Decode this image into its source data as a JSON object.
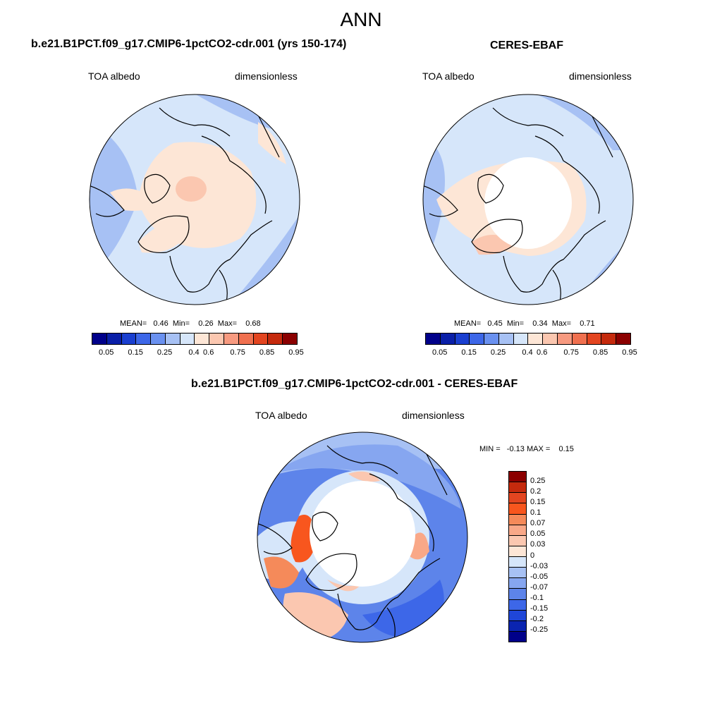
{
  "main_title": "ANN",
  "panels": [
    {
      "title": "b.e21.B1PCT.f09_g17.CMIP6-1pctCO2-cdr.001 (yrs 150-174)",
      "left_label": "TOA albedo",
      "right_label": "dimensionless",
      "stats": "MEAN=   0.46  Min=    0.26  Max=    0.68"
    },
    {
      "title": "CERES-EBAF",
      "left_label": "TOA albedo",
      "right_label": "dimensionless",
      "stats": "MEAN=   0.45  Min=    0.34  Max=    0.71"
    },
    {
      "title": "b.e21.B1PCT.f09_g17.CMIP6-1pctCO2-cdr.001 - CERES-EBAF",
      "left_label": "TOA albedo",
      "right_label": "dimensionless",
      "stats": "MIN =   -0.13 MAX =    0.15"
    }
  ],
  "colorbar_top": {
    "ticks": [
      "0.05",
      "0.15",
      "0.25",
      "0.4",
      "0.6",
      "0.75",
      "0.85",
      "0.95"
    ],
    "colors": [
      "#00008a",
      "#0a1fa8",
      "#1a3fd0",
      "#3d67e8",
      "#6a91f0",
      "#a7c1f4",
      "#d6e6fa",
      "#fde6d6",
      "#fbc7b0",
      "#f79a80",
      "#f0704f",
      "#e34520",
      "#c52a0d",
      "#8b0000"
    ]
  },
  "colorbar_diff": {
    "ticks": [
      "0.25",
      "0.2",
      "0.15",
      "0.1",
      "0.07",
      "0.05",
      "0.03",
      "0",
      "-0.03",
      "-0.05",
      "-0.07",
      "-0.1",
      "-0.15",
      "-0.2",
      "-0.25"
    ],
    "colors": [
      "#8b0000",
      "#c52a0d",
      "#e34520",
      "#f8561e",
      "#f58a5a",
      "#f9a888",
      "#fbc7b0",
      "#fde6d6",
      "#d6e6fa",
      "#a7c1f4",
      "#86a6f0",
      "#5d84ea",
      "#3d67e8",
      "#1f46d8",
      "#0a24b0",
      "#00008a"
    ]
  }
}
